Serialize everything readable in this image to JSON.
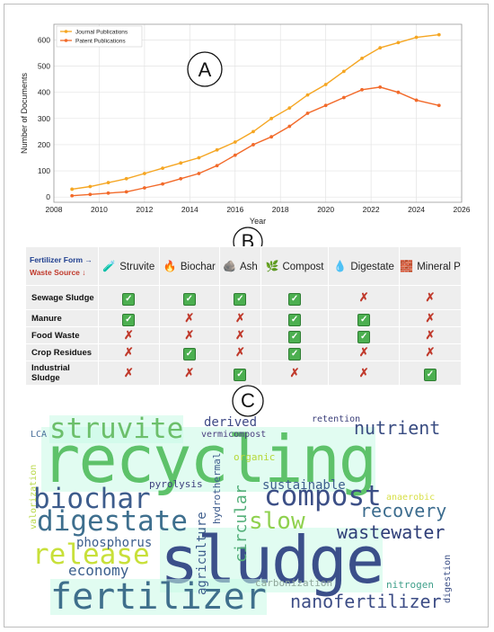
{
  "panel_labels": {
    "a": "A",
    "b": "B",
    "c": "C"
  },
  "chart_data": {
    "type": "line",
    "xlabel": "Year",
    "ylabel": "Number of Documents",
    "xlim": [
      2008,
      2026
    ],
    "ylim": [
      -20,
      660
    ],
    "x_ticks": [
      "2008",
      "2010",
      "2012",
      "2014",
      "2016",
      "2018",
      "2020",
      "2022",
      "2024",
      "2026"
    ],
    "y_ticks": [
      "0",
      "100",
      "200",
      "300",
      "400",
      "500",
      "600"
    ],
    "grid": true,
    "legend_position": "top-left",
    "colors": {
      "journal": "#f5a623",
      "patent": "#f26a2a"
    },
    "series": [
      {
        "name": "Journal Publications",
        "x": [
          2008.8,
          2009.6,
          2010.4,
          2011.2,
          2012.0,
          2012.8,
          2013.6,
          2014.4,
          2015.2,
          2016.0,
          2016.8,
          2017.6,
          2018.4,
          2019.2,
          2020.0,
          2020.8,
          2021.6,
          2022.4,
          2023.2,
          2024.0,
          2025.0
        ],
        "y": [
          30,
          40,
          55,
          70,
          90,
          110,
          130,
          150,
          180,
          210,
          250,
          300,
          340,
          390,
          430,
          480,
          530,
          570,
          590,
          610,
          620
        ]
      },
      {
        "name": "Patent Publications",
        "x": [
          2008.8,
          2009.6,
          2010.4,
          2011.2,
          2012.0,
          2012.8,
          2013.6,
          2014.4,
          2015.2,
          2016.0,
          2016.8,
          2017.6,
          2018.4,
          2019.2,
          2020.0,
          2020.8,
          2021.6,
          2022.4,
          2023.2,
          2024.0,
          2025.0
        ],
        "y": [
          5,
          10,
          15,
          20,
          35,
          50,
          70,
          90,
          120,
          160,
          200,
          230,
          270,
          320,
          350,
          380,
          410,
          420,
          400,
          370,
          350
        ]
      }
    ]
  },
  "table": {
    "corner_top": "Fertilizer Form →",
    "corner_bottom": "Waste Source ↓",
    "columns": [
      {
        "label": "Struvite",
        "icon": "test-tube-icon",
        "glyph": "🧪"
      },
      {
        "label": "Biochar",
        "icon": "fire-icon",
        "glyph": "🔥"
      },
      {
        "label": "Ash",
        "icon": "rock-icon",
        "glyph": "🪨"
      },
      {
        "label": "Compost",
        "icon": "leaves-icon",
        "glyph": "🌿"
      },
      {
        "label": "Digestate",
        "icon": "droplet-icon",
        "glyph": "💧"
      },
      {
        "label": "Mineral P",
        "icon": "brick-icon",
        "glyph": "🧱"
      }
    ],
    "rows": [
      {
        "label": "Sewage Sludge",
        "cells": [
          "yes",
          "yes",
          "yes",
          "yes",
          "no",
          "no"
        ]
      },
      {
        "label": "Manure",
        "cells": [
          "yes",
          "no",
          "no",
          "yes",
          "yes",
          "no"
        ]
      },
      {
        "label": "Food Waste",
        "cells": [
          "no",
          "no",
          "no",
          "yes",
          "yes",
          "no"
        ]
      },
      {
        "label": "Crop Residues",
        "cells": [
          "no",
          "yes",
          "no",
          "yes",
          "no",
          "no"
        ]
      },
      {
        "label": "Industrial Sludge",
        "cells": [
          "no",
          "no",
          "yes",
          "no",
          "no",
          "yes"
        ]
      }
    ],
    "symbols": {
      "yes": "✓",
      "no": "✗"
    }
  },
  "wordcloud": [
    {
      "id": "recycling",
      "text": "recycling",
      "color": "#5ec26a"
    },
    {
      "id": "sludge",
      "text": "sludge",
      "color": "#3b4f8a"
    },
    {
      "id": "fertilizer",
      "text": "fertilizer",
      "color": "#3f6f8c"
    },
    {
      "id": "struvite",
      "text": "struvite",
      "color": "#6cbf6b"
    },
    {
      "id": "biochar",
      "text": "biochar",
      "color": "#3d5c8c"
    },
    {
      "id": "digestate",
      "text": "digestate",
      "color": "#3e6f8e"
    },
    {
      "id": "compost",
      "text": "compost",
      "color": "#3c4f86"
    },
    {
      "id": "release",
      "text": "release",
      "color": "#c8e03a"
    },
    {
      "id": "slow",
      "text": "slow",
      "color": "#8fd14f"
    },
    {
      "id": "wastewater",
      "text": "wastewater",
      "color": "#2f3e78"
    },
    {
      "id": "nutrient",
      "text": "nutrient",
      "color": "#3a4d82"
    },
    {
      "id": "recovery",
      "text": "recovery",
      "color": "#3c6c8e"
    },
    {
      "id": "nanofertilizer",
      "text": "nanofertilizer",
      "color": "#3d4d86"
    },
    {
      "id": "economy",
      "text": "economy",
      "color": "#3b5f8d"
    },
    {
      "id": "phosphorus",
      "text": "phosphorus",
      "color": "#3d5f8d"
    },
    {
      "id": "circular",
      "text": "circular",
      "color": "#55b07a"
    },
    {
      "id": "agriculture",
      "text": "agriculture",
      "color": "#3d5d8c"
    },
    {
      "id": "sustainable",
      "text": "sustainable",
      "color": "#3c5c8c"
    },
    {
      "id": "derived",
      "text": "derived",
      "color": "#3f4a86"
    },
    {
      "id": "vermicompost",
      "text": "vermicompost",
      "color": "#4b3f7f"
    },
    {
      "id": "organic",
      "text": "organic",
      "color": "#b6d83a"
    },
    {
      "id": "pyrolysis",
      "text": "pyrolysis",
      "color": "#3d3f7d"
    },
    {
      "id": "hydrothermal",
      "text": "hydrothermal",
      "color": "#3c5a8c"
    },
    {
      "id": "carbonization",
      "text": "carbonization",
      "color": "#8fa69a"
    },
    {
      "id": "nitrogen",
      "text": "nitrogen",
      "color": "#3f9f8a"
    },
    {
      "id": "digestion",
      "text": "digestion",
      "color": "#3c4f86"
    },
    {
      "id": "anaerobic",
      "text": "anaerobic",
      "color": "#d8e04a"
    },
    {
      "id": "retention",
      "text": "retention",
      "color": "#3b3f7a"
    },
    {
      "id": "lca",
      "text": "LCA",
      "color": "#4a6f9a"
    },
    {
      "id": "valorization",
      "text": "valorization",
      "color": "#b9d84a"
    }
  ]
}
